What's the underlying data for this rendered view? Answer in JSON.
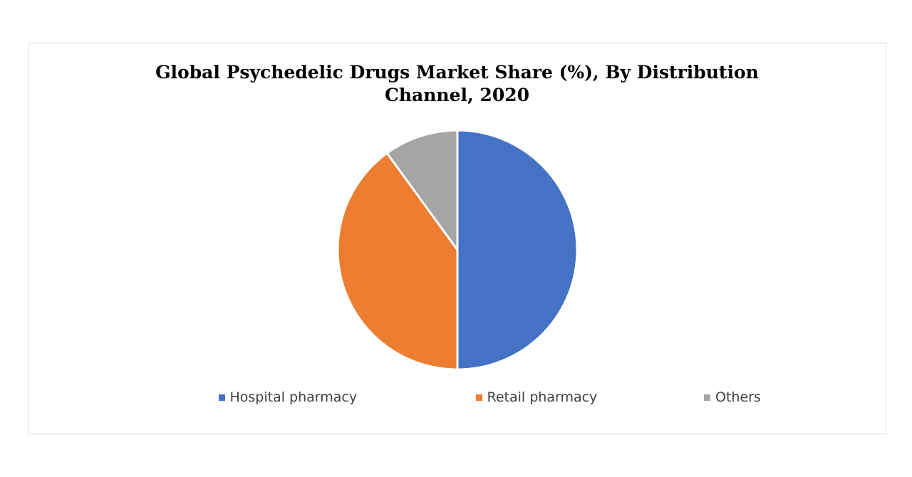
{
  "chart_data": {
    "type": "pie",
    "title_lines": [
      "Global Psychedelic Drugs Market Share (%), By Distribution",
      "Channel, 2020"
    ],
    "categories": [
      "Hospital pharmacy",
      "Retail pharmacy",
      "Others"
    ],
    "values": [
      50,
      40,
      10
    ],
    "colors": [
      "#4472c4",
      "#ed7d31",
      "#a5a5a5"
    ],
    "start_angle": "12 o'clock",
    "direction": "clockwise",
    "slice_border_color": "#ffffff",
    "legend_position": "bottom"
  }
}
